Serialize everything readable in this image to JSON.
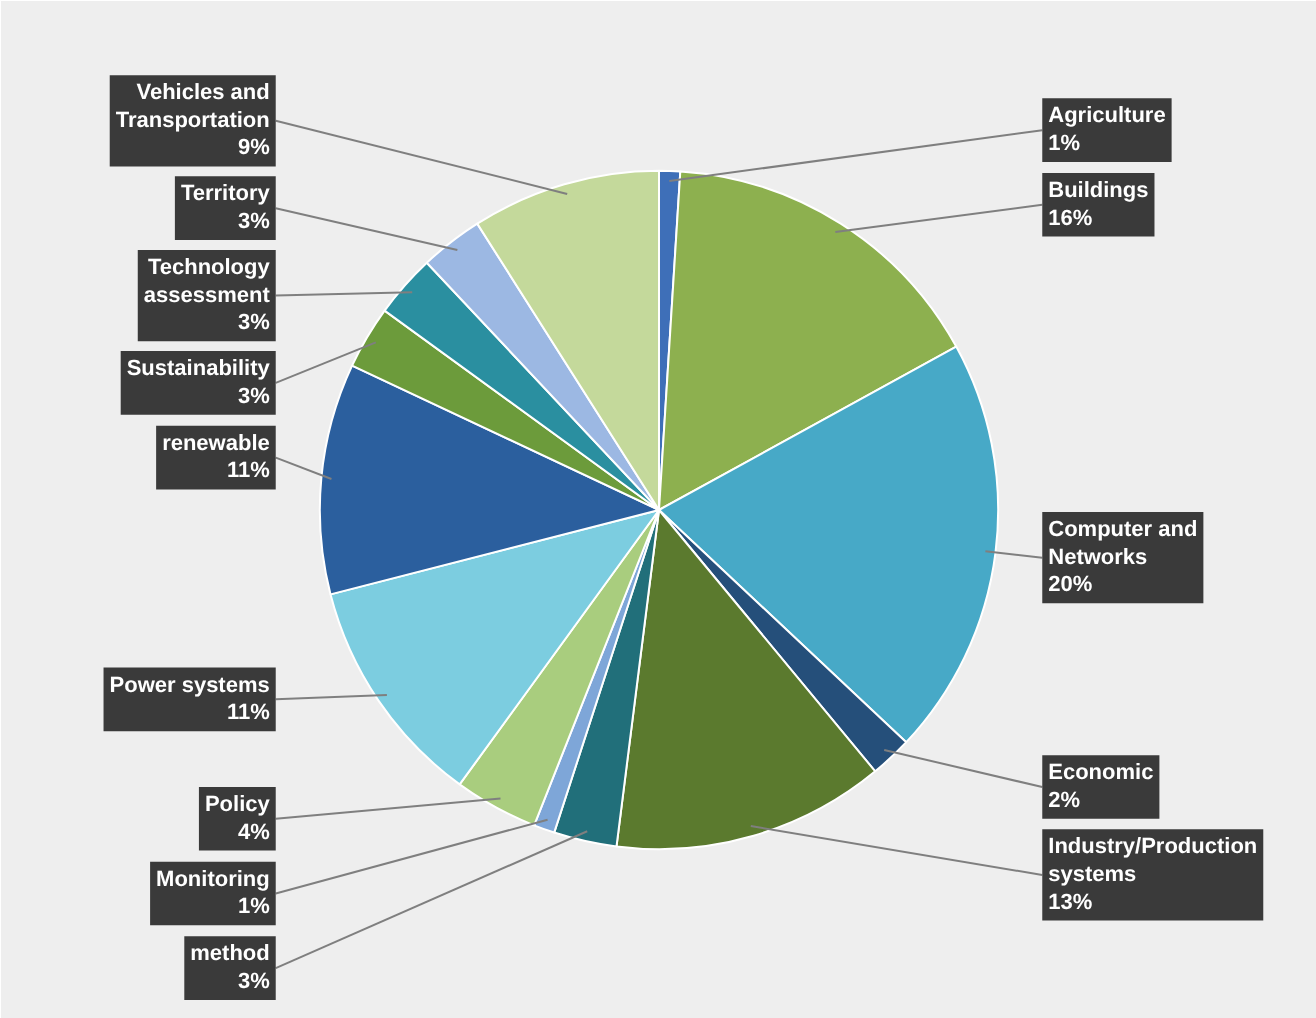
{
  "chart_data": {
    "type": "pie",
    "categories": [
      "Agriculture",
      "Buildings",
      "Computer and Networks",
      "Economic",
      "Industry/Production systems",
      "method",
      "Monitoring",
      "Policy",
      "Power systems",
      "renewable",
      "Sustainability",
      "Technology assessment",
      "Territory",
      "Vehicles and Transportation"
    ],
    "values": [
      1,
      16,
      20,
      2,
      13,
      3,
      1,
      4,
      11,
      11,
      3,
      3,
      3,
      9
    ],
    "value_labels": [
      "1%",
      "16%",
      "20%",
      "2%",
      "13%",
      "3%",
      "1%",
      "4%",
      "11%",
      "11%",
      "3%",
      "3%",
      "3%",
      "9%"
    ],
    "colors": [
      "#3e6fb8",
      "#8db04f",
      "#47a9c7",
      "#254f7a",
      "#5b7a2e",
      "#216f7a",
      "#7ea6d8",
      "#a9cd7e",
      "#7ccde0",
      "#2b5f9e",
      "#6c9b3b",
      "#2a8fa0",
      "#9cb8e3",
      "#c4d99b"
    ]
  }
}
